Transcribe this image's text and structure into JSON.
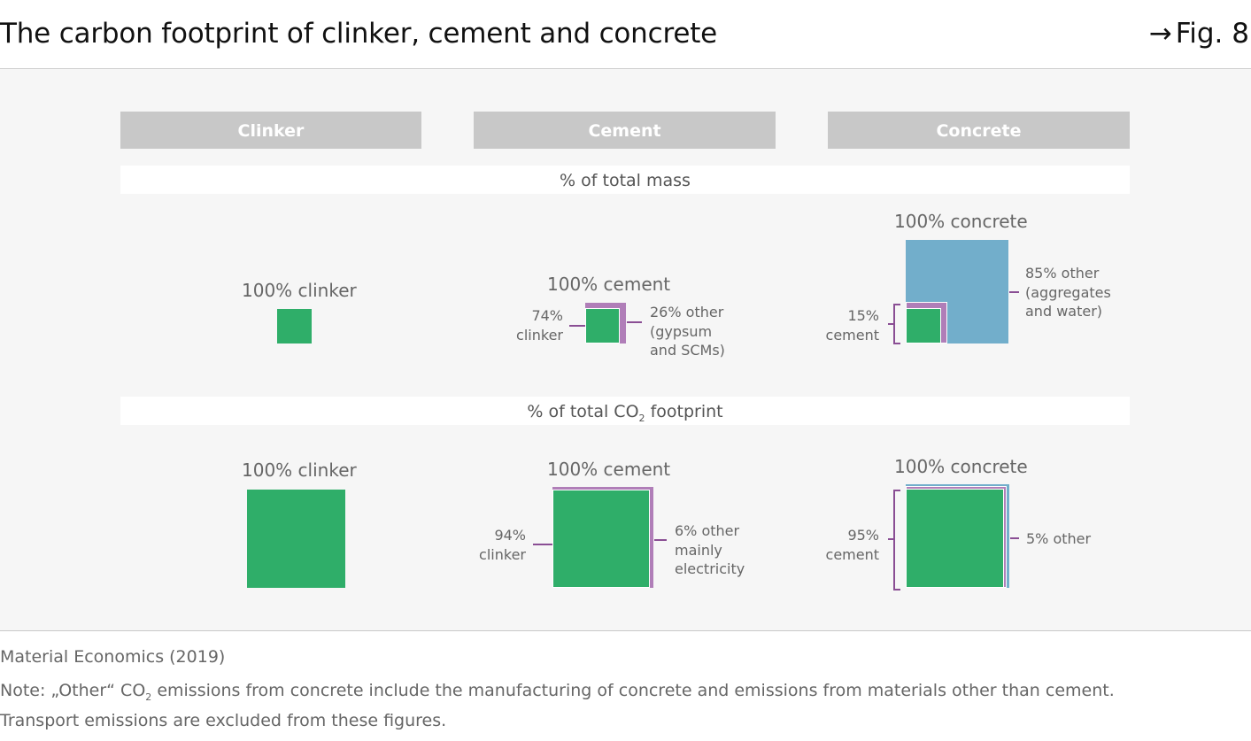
{
  "header": {
    "title": "The carbon footprint of clinker, cement and concrete",
    "fig_arrow": "→",
    "fig_label": "Fig. 8"
  },
  "columns": [
    "Clinker",
    "Cement",
    "Concrete"
  ],
  "sections": {
    "mass": {
      "title": "% of total mass",
      "clinker": {
        "top_label": "100% clinker"
      },
      "cement": {
        "top_label": "100% cement",
        "left_label": [
          "74%",
          "clinker"
        ],
        "right_label": [
          "26% other",
          "(gypsum",
          "and SCMs)"
        ]
      },
      "concrete": {
        "top_label": "100% concrete",
        "left_label": [
          "15%",
          "cement"
        ],
        "right_label": [
          "85% other",
          "(aggregates",
          "and water)"
        ]
      }
    },
    "co2": {
      "title_prefix": "% of total CO",
      "title_sub": "2",
      "title_suffix": " footprint",
      "clinker": {
        "top_label": "100% clinker"
      },
      "cement": {
        "top_label": "100% cement",
        "left_label": [
          "94%",
          "clinker"
        ],
        "right_label": [
          "6% other",
          "mainly",
          "electricity"
        ]
      },
      "concrete": {
        "top_label": "100% concrete",
        "left_label": [
          "95%",
          "cement"
        ],
        "right_label": [
          "5% other"
        ]
      }
    }
  },
  "footer": {
    "source": "Material Economics (2019)",
    "note_line1_a": "Note: „Other“ CO",
    "note_line1_sub": "2",
    "note_line1_b": " emissions from concrete include the manufacturing of concrete and emissions from materials other than cement.",
    "note_line2": "Transport emissions are excluded from these figures."
  },
  "colors": {
    "clinker_green": "#2fae69",
    "other_purple": "#b07eb8",
    "other_blue": "#72aecb",
    "header_grey": "#c8c8c8"
  }
}
